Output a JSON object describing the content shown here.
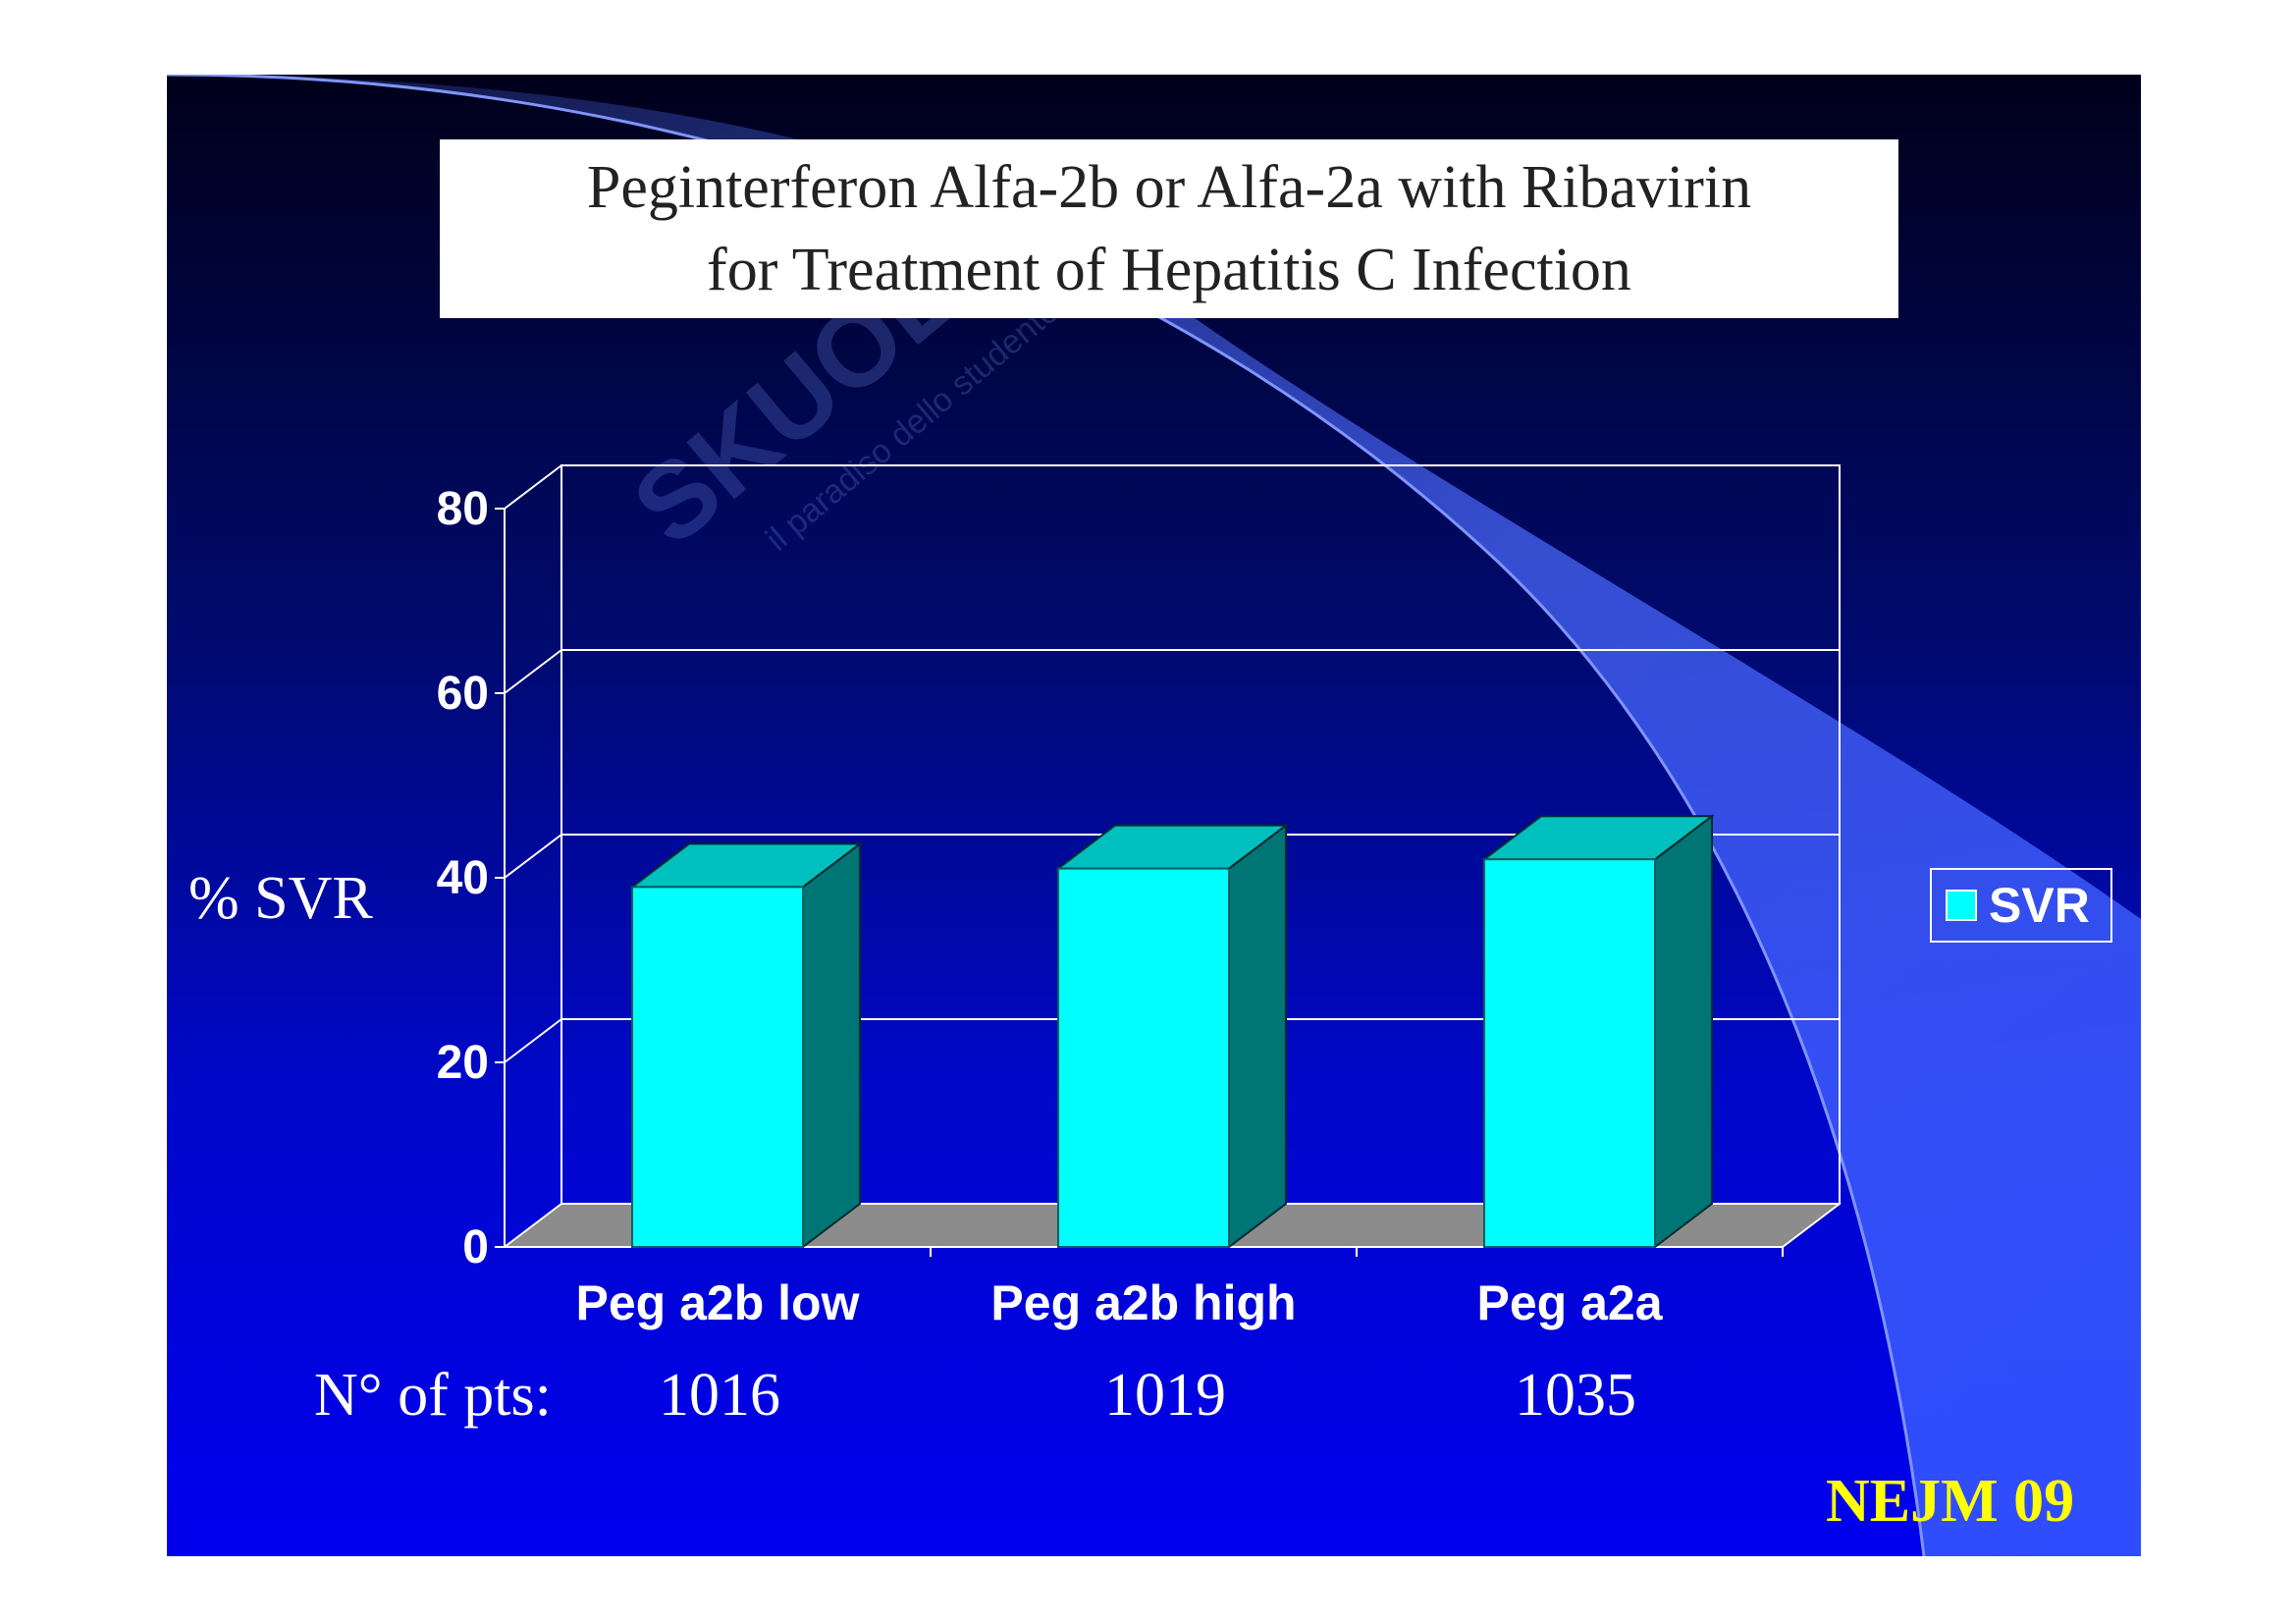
{
  "slide": {
    "title_line1": "Peginterferon Alfa-2b or Alfa-2a with Ribavirin",
    "title_line2": "for Treatment of Hepatitis C Infection",
    "watermark_text": "SKUOLA.NET",
    "watermark_tagline": "il paradiso dello studente",
    "pts_label": "N° of pts:",
    "pts_values": [
      "1016",
      "1019",
      "1035"
    ],
    "source": "NEJM 09",
    "colors": {
      "bar_front": "#00ffff",
      "bar_top": "#00bfbf",
      "bar_side": "#007575",
      "floor": "#8c8c8c",
      "source_text": "#ffff00"
    }
  },
  "chart_data": {
    "type": "bar",
    "categories": [
      "Peg a2b low",
      "Peg a2b high",
      "Peg a2a"
    ],
    "series": [
      {
        "name": "SVR",
        "values": [
          39,
          41,
          42
        ]
      }
    ],
    "ylabel": "% SVR",
    "ylim": [
      0,
      80
    ],
    "yticks": [
      "0",
      "20",
      "40",
      "60",
      "80"
    ],
    "grid": true,
    "legend": "right",
    "three_d": true
  }
}
